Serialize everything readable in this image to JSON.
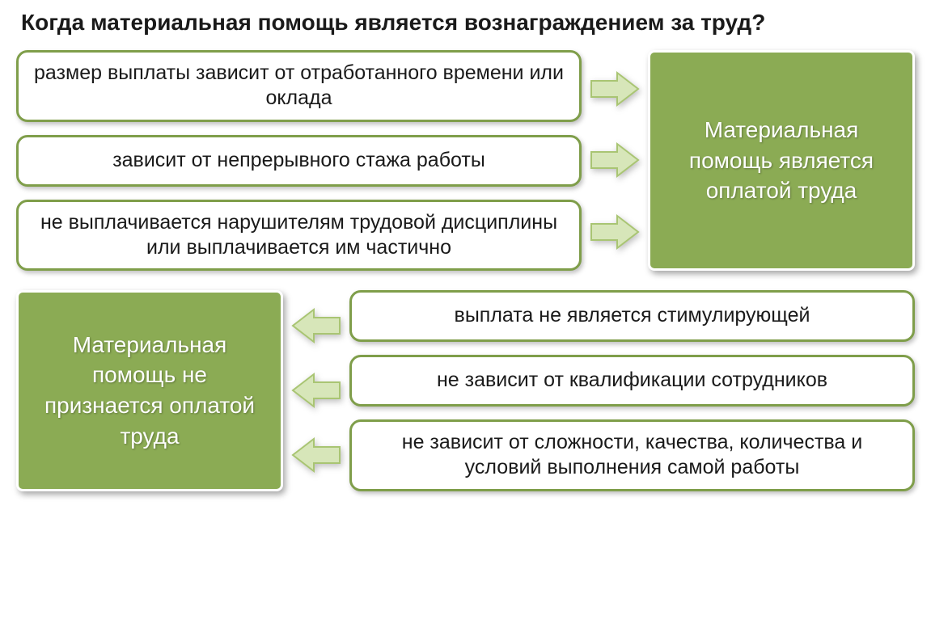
{
  "title": "Когда материальная помощь является вознаграждением за труд?",
  "colors": {
    "border_green": "#7f9e4a",
    "fill_green": "#8bab54",
    "arrow_fill": "#d7e6b9",
    "arrow_stroke": "#a9c573",
    "text_dark": "#1a1a1a",
    "text_white": "#ffffff"
  },
  "section1": {
    "criteria": [
      "размер выплаты зависит от отработанного времени или оклада",
      "зависит от непрерывного стажа работы",
      "не выплачивается нарушителям трудовой дисциплины или выплачивается им частично"
    ],
    "result": "Материальная помощь является оплатой труда"
  },
  "section2": {
    "criteria": [
      "выплата не является стимулирующей",
      "не зависит от квалификации сотрудников",
      "не зависит от сложности, качества, количества и условий выполнения самой работы"
    ],
    "result": "Материальная помощь не признается оплатой труда"
  }
}
